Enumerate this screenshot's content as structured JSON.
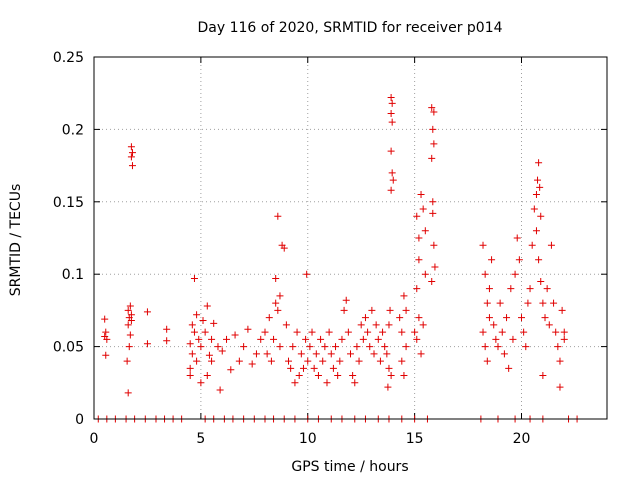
{
  "chart_data": {
    "type": "scatter",
    "title": "Day 116 of 2020, SRMTID for receiver p014",
    "xlabel": "GPS time / hours",
    "ylabel": "SRMTID / TECUs",
    "xlim": [
      0,
      24
    ],
    "ylim": [
      0,
      0.25
    ],
    "xticks": [
      0,
      5,
      10,
      15,
      20
    ],
    "yticks": [
      0,
      0.05,
      0.1,
      0.15,
      0.2,
      0.25
    ],
    "xtick_labels": [
      "0",
      "5",
      "10",
      "15",
      "20"
    ],
    "ytick_labels": [
      "0",
      "0.05",
      "0.1",
      "0.15",
      "0.2",
      "0.25"
    ],
    "grid": true,
    "marker": "+",
    "color": "#e00000",
    "series": [
      {
        "name": "SRMTID",
        "points": [
          [
            0.5,
            0.069
          ],
          [
            0.5,
            0.057
          ],
          [
            0.55,
            0.044
          ],
          [
            0.6,
            0.055
          ],
          [
            0.55,
            0.06
          ],
          [
            1.6,
            0.075
          ],
          [
            1.65,
            0.07
          ],
          [
            1.7,
            0.078
          ],
          [
            1.75,
            0.068
          ],
          [
            1.6,
            0.065
          ],
          [
            1.7,
            0.058
          ],
          [
            1.65,
            0.05
          ],
          [
            1.55,
            0.04
          ],
          [
            1.6,
            0.018
          ],
          [
            1.75,
            0.072
          ],
          [
            1.75,
            0.188
          ],
          [
            1.8,
            0.184
          ],
          [
            1.75,
            0.181
          ],
          [
            1.8,
            0.175
          ],
          [
            2.5,
            0.074
          ],
          [
            2.5,
            0.052
          ],
          [
            3.4,
            0.062
          ],
          [
            3.4,
            0.054
          ],
          [
            4.5,
            0.052
          ],
          [
            4.6,
            0.045
          ],
          [
            4.7,
            0.06
          ],
          [
            4.5,
            0.035
          ],
          [
            4.8,
            0.04
          ],
          [
            4.6,
            0.065
          ],
          [
            4.7,
            0.097
          ],
          [
            4.9,
            0.055
          ],
          [
            4.8,
            0.072
          ],
          [
            4.5,
            0.03
          ],
          [
            5.0,
            0.05
          ],
          [
            5.1,
            0.068
          ],
          [
            5.0,
            0.025
          ],
          [
            5.2,
            0.06
          ],
          [
            5.3,
            0.078
          ],
          [
            5.4,
            0.044
          ],
          [
            5.5,
            0.055
          ],
          [
            5.3,
            0.03
          ],
          [
            5.6,
            0.066
          ],
          [
            5.5,
            0.04
          ],
          [
            5.8,
            0.05
          ],
          [
            5.9,
            0.02
          ],
          [
            6.0,
            0.047
          ],
          [
            6.2,
            0.055
          ],
          [
            6.4,
            0.034
          ],
          [
            6.6,
            0.058
          ],
          [
            6.8,
            0.04
          ],
          [
            7.0,
            0.05
          ],
          [
            7.2,
            0.062
          ],
          [
            7.4,
            0.038
          ],
          [
            7.6,
            0.045
          ],
          [
            7.8,
            0.055
          ],
          [
            8.0,
            0.06
          ],
          [
            8.1,
            0.045
          ],
          [
            8.2,
            0.07
          ],
          [
            8.3,
            0.04
          ],
          [
            8.4,
            0.055
          ],
          [
            8.5,
            0.08
          ],
          [
            8.6,
            0.075
          ],
          [
            8.6,
            0.14
          ],
          [
            8.7,
            0.05
          ],
          [
            8.8,
            0.12
          ],
          [
            8.9,
            0.118
          ],
          [
            9.0,
            0.065
          ],
          [
            8.5,
            0.097
          ],
          [
            8.7,
            0.085
          ],
          [
            9.1,
            0.04
          ],
          [
            9.2,
            0.035
          ],
          [
            9.3,
            0.05
          ],
          [
            9.4,
            0.025
          ],
          [
            9.5,
            0.06
          ],
          [
            9.6,
            0.03
          ],
          [
            9.7,
            0.045
          ],
          [
            9.8,
            0.035
          ],
          [
            9.9,
            0.055
          ],
          [
            9.95,
            0.1
          ],
          [
            10.0,
            0.04
          ],
          [
            10.1,
            0.05
          ],
          [
            10.2,
            0.06
          ],
          [
            10.3,
            0.035
          ],
          [
            10.4,
            0.045
          ],
          [
            10.5,
            0.03
          ],
          [
            10.6,
            0.055
          ],
          [
            10.7,
            0.04
          ],
          [
            10.8,
            0.05
          ],
          [
            10.9,
            0.025
          ],
          [
            11.0,
            0.06
          ],
          [
            11.1,
            0.045
          ],
          [
            11.2,
            0.035
          ],
          [
            11.3,
            0.05
          ],
          [
            11.4,
            0.03
          ],
          [
            11.5,
            0.04
          ],
          [
            11.6,
            0.055
          ],
          [
            11.7,
            0.075
          ],
          [
            11.8,
            0.082
          ],
          [
            11.9,
            0.06
          ],
          [
            12.0,
            0.045
          ],
          [
            12.1,
            0.03
          ],
          [
            12.2,
            0.025
          ],
          [
            12.3,
            0.05
          ],
          [
            12.4,
            0.04
          ],
          [
            12.5,
            0.065
          ],
          [
            12.6,
            0.055
          ],
          [
            12.7,
            0.07
          ],
          [
            12.8,
            0.06
          ],
          [
            12.9,
            0.05
          ],
          [
            13.0,
            0.075
          ],
          [
            13.1,
            0.045
          ],
          [
            13.2,
            0.065
          ],
          [
            13.3,
            0.055
          ],
          [
            13.4,
            0.04
          ],
          [
            13.5,
            0.06
          ],
          [
            13.6,
            0.05
          ],
          [
            13.7,
            0.045
          ],
          [
            13.8,
            0.035
          ],
          [
            13.9,
            0.03
          ],
          [
            13.75,
            0.022
          ],
          [
            13.8,
            0.065
          ],
          [
            13.85,
            0.075
          ],
          [
            13.9,
            0.222
          ],
          [
            13.95,
            0.218
          ],
          [
            13.9,
            0.211
          ],
          [
            13.95,
            0.205
          ],
          [
            13.9,
            0.185
          ],
          [
            13.95,
            0.17
          ],
          [
            14.0,
            0.165
          ],
          [
            13.9,
            0.158
          ],
          [
            14.3,
            0.07
          ],
          [
            14.4,
            0.06
          ],
          [
            14.5,
            0.085
          ],
          [
            14.6,
            0.05
          ],
          [
            14.4,
            0.04
          ],
          [
            14.5,
            0.03
          ],
          [
            14.6,
            0.075
          ],
          [
            15.0,
            0.06
          ],
          [
            15.1,
            0.055
          ],
          [
            15.2,
            0.07
          ],
          [
            15.3,
            0.045
          ],
          [
            15.4,
            0.065
          ],
          [
            15.5,
            0.1
          ],
          [
            15.1,
            0.09
          ],
          [
            15.2,
            0.11
          ],
          [
            15.1,
            0.14
          ],
          [
            15.3,
            0.155
          ],
          [
            15.4,
            0.145
          ],
          [
            15.2,
            0.125
          ],
          [
            15.5,
            0.13
          ],
          [
            15.8,
            0.215
          ],
          [
            15.9,
            0.212
          ],
          [
            15.85,
            0.2
          ],
          [
            15.9,
            0.19
          ],
          [
            15.8,
            0.18
          ],
          [
            15.85,
            0.15
          ],
          [
            15.9,
            0.12
          ],
          [
            15.95,
            0.105
          ],
          [
            15.8,
            0.095
          ],
          [
            15.85,
            0.142
          ],
          [
            18.2,
            0.12
          ],
          [
            18.3,
            0.1
          ],
          [
            18.4,
            0.08
          ],
          [
            18.5,
            0.07
          ],
          [
            18.2,
            0.06
          ],
          [
            18.3,
            0.05
          ],
          [
            18.4,
            0.04
          ],
          [
            18.5,
            0.09
          ],
          [
            18.6,
            0.11
          ],
          [
            18.7,
            0.065
          ],
          [
            18.8,
            0.055
          ],
          [
            18.9,
            0.05
          ],
          [
            19.0,
            0.08
          ],
          [
            19.1,
            0.06
          ],
          [
            19.2,
            0.045
          ],
          [
            19.3,
            0.07
          ],
          [
            19.4,
            0.035
          ],
          [
            19.5,
            0.09
          ],
          [
            19.6,
            0.055
          ],
          [
            19.7,
            0.1
          ],
          [
            19.8,
            0.125
          ],
          [
            19.9,
            0.11
          ],
          [
            20.0,
            0.07
          ],
          [
            20.1,
            0.06
          ],
          [
            20.2,
            0.05
          ],
          [
            20.3,
            0.08
          ],
          [
            20.4,
            0.09
          ],
          [
            20.5,
            0.12
          ],
          [
            20.6,
            0.145
          ],
          [
            20.7,
            0.155
          ],
          [
            20.75,
            0.165
          ],
          [
            20.8,
            0.177
          ],
          [
            20.85,
            0.16
          ],
          [
            20.9,
            0.14
          ],
          [
            20.7,
            0.13
          ],
          [
            20.8,
            0.11
          ],
          [
            20.9,
            0.095
          ],
          [
            21.0,
            0.08
          ],
          [
            21.0,
            0.03
          ],
          [
            21.1,
            0.07
          ],
          [
            21.2,
            0.09
          ],
          [
            21.3,
            0.065
          ],
          [
            21.4,
            0.12
          ],
          [
            21.5,
            0.08
          ],
          [
            21.6,
            0.06
          ],
          [
            21.7,
            0.05
          ],
          [
            21.8,
            0.04
          ],
          [
            21.9,
            0.075
          ],
          [
            22.0,
            0.055
          ],
          [
            21.8,
            0.022
          ],
          [
            22.0,
            0.06
          ],
          [
            0.2,
            0
          ],
          [
            0.6,
            0
          ],
          [
            1.0,
            0
          ],
          [
            1.5,
            0
          ],
          [
            1.9,
            0
          ],
          [
            2.4,
            0
          ],
          [
            2.9,
            0
          ],
          [
            3.3,
            0
          ],
          [
            3.7,
            0
          ],
          [
            4.1,
            0
          ],
          [
            5.2,
            0
          ],
          [
            5.6,
            0
          ],
          [
            6.1,
            0
          ],
          [
            6.5,
            0
          ],
          [
            7.0,
            0
          ],
          [
            7.5,
            0
          ],
          [
            8.0,
            0
          ],
          [
            8.4,
            0
          ],
          [
            8.9,
            0
          ],
          [
            9.4,
            0
          ],
          [
            10.0,
            0
          ],
          [
            10.5,
            0
          ],
          [
            11.1,
            0
          ],
          [
            11.6,
            0
          ],
          [
            12.2,
            0
          ],
          [
            12.7,
            0
          ],
          [
            13.3,
            0
          ],
          [
            13.8,
            0
          ],
          [
            14.4,
            0
          ],
          [
            15.0,
            0
          ],
          [
            15.6,
            0
          ],
          [
            18.1,
            0
          ],
          [
            18.9,
            0
          ],
          [
            19.7,
            0
          ],
          [
            20.4,
            0
          ],
          [
            21.0,
            0
          ],
          [
            22.2,
            0
          ],
          [
            22.6,
            0
          ]
        ]
      }
    ]
  }
}
